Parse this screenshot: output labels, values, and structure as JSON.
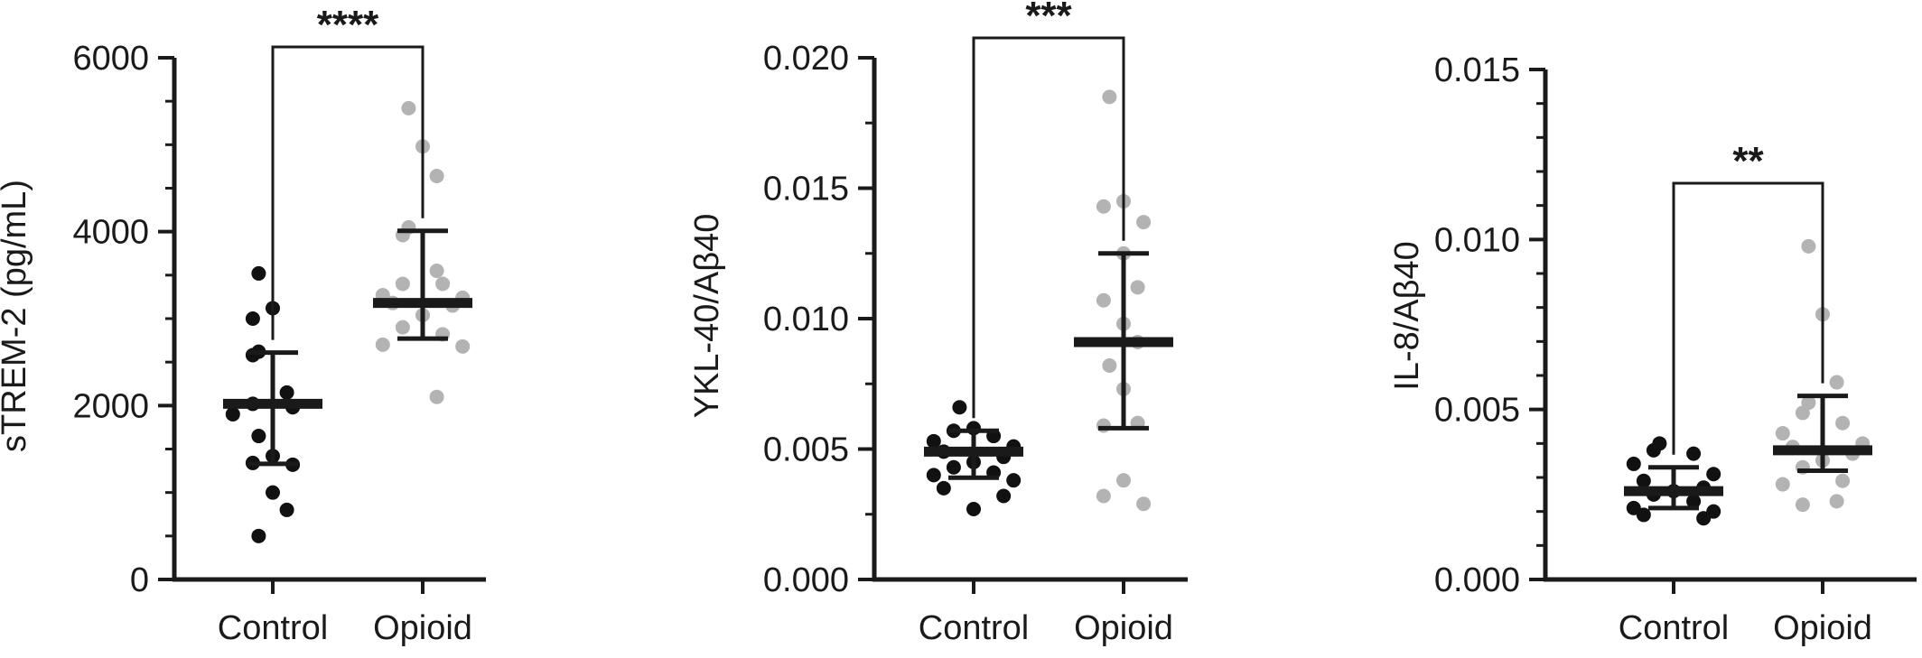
{
  "colors": {
    "axis": "#1a1a1a",
    "control": "#111111",
    "opioid": "#b3b3b3",
    "summary": "#1a1a1a"
  },
  "chart_data": [
    {
      "type": "scatter",
      "ylabel": "sTREM-2 (pg/mL)",
      "categories": [
        "Control",
        "Opioid"
      ],
      "ylim": [
        0,
        6000
      ],
      "yticks": [
        0,
        2000,
        4000,
        6000
      ],
      "ytick_labels": [
        "0",
        "2000",
        "4000",
        "6000"
      ],
      "minor_ticks_per_interval": 3,
      "series": [
        {
          "category": "Control",
          "color": "#111111",
          "values": [
            3520,
            3120,
            3000,
            2620,
            2580,
            2150,
            2020,
            1980,
            1900,
            1650,
            1420,
            1340,
            1320,
            1000,
            800,
            500
          ],
          "mean": 2020,
          "err_low": 1330,
          "err_high": 2610
        },
        {
          "category": "Opioid",
          "color": "#b3b3b3",
          "values": [
            5420,
            4980,
            4640,
            4050,
            3960,
            3550,
            3400,
            3400,
            3270,
            3240,
            3180,
            3150,
            3040,
            2900,
            2820,
            2700,
            2680,
            2100
          ],
          "mean": 3180,
          "err_low": 2770,
          "err_high": 4010
        }
      ],
      "significance": "****"
    },
    {
      "type": "scatter",
      "ylabel": "YKL-40/Aβ40",
      "categories": [
        "Control",
        "Opioid"
      ],
      "ylim": [
        0,
        0.02
      ],
      "yticks": [
        0,
        0.005,
        0.01,
        0.015,
        0.02
      ],
      "ytick_labels": [
        "0.000",
        "0.005",
        "0.010",
        "0.015",
        "0.020"
      ],
      "minor_ticks_per_interval": 1,
      "series": [
        {
          "category": "Control",
          "color": "#111111",
          "values": [
            0.0066,
            0.0058,
            0.0057,
            0.0055,
            0.0053,
            0.0051,
            0.0049,
            0.0047,
            0.0045,
            0.0043,
            0.0041,
            0.004,
            0.0038,
            0.0035,
            0.0032,
            0.0027
          ],
          "mean": 0.0049,
          "err_low": 0.0039,
          "err_high": 0.0057
        },
        {
          "category": "Opioid",
          "color": "#b3b3b3",
          "values": [
            0.0185,
            0.0145,
            0.0143,
            0.0137,
            0.0125,
            0.0112,
            0.0107,
            0.0098,
            0.0091,
            0.0082,
            0.0073,
            0.006,
            0.0059,
            0.0038,
            0.0032,
            0.0029
          ],
          "mean": 0.0091,
          "err_low": 0.0058,
          "err_high": 0.0125
        }
      ],
      "significance": "***"
    },
    {
      "type": "scatter",
      "ylabel": "IL-8/Aβ40",
      "categories": [
        "Control",
        "Opioid"
      ],
      "ylim": [
        0,
        0.015
      ],
      "yticks": [
        0,
        0.005,
        0.01,
        0.015
      ],
      "ytick_labels": [
        "0.000",
        "0.005",
        "0.010",
        "0.015"
      ],
      "minor_ticks_per_interval": 4,
      "series": [
        {
          "category": "Control",
          "color": "#111111",
          "values": [
            0.004,
            0.0038,
            0.0037,
            0.0034,
            0.0031,
            0.0029,
            0.0027,
            0.0026,
            0.0025,
            0.0023,
            0.0021,
            0.002,
            0.0019,
            0.0018
          ],
          "mean": 0.0026,
          "err_low": 0.0021,
          "err_high": 0.0033
        },
        {
          "category": "Opioid",
          "color": "#b3b3b3",
          "values": [
            0.0098,
            0.0078,
            0.0058,
            0.0052,
            0.0049,
            0.0046,
            0.0043,
            0.004,
            0.0039,
            0.0037,
            0.0035,
            0.0033,
            0.0029,
            0.0028,
            0.0023,
            0.0022
          ],
          "mean": 0.0038,
          "err_low": 0.0032,
          "err_high": 0.0054
        }
      ],
      "significance": "**"
    }
  ]
}
